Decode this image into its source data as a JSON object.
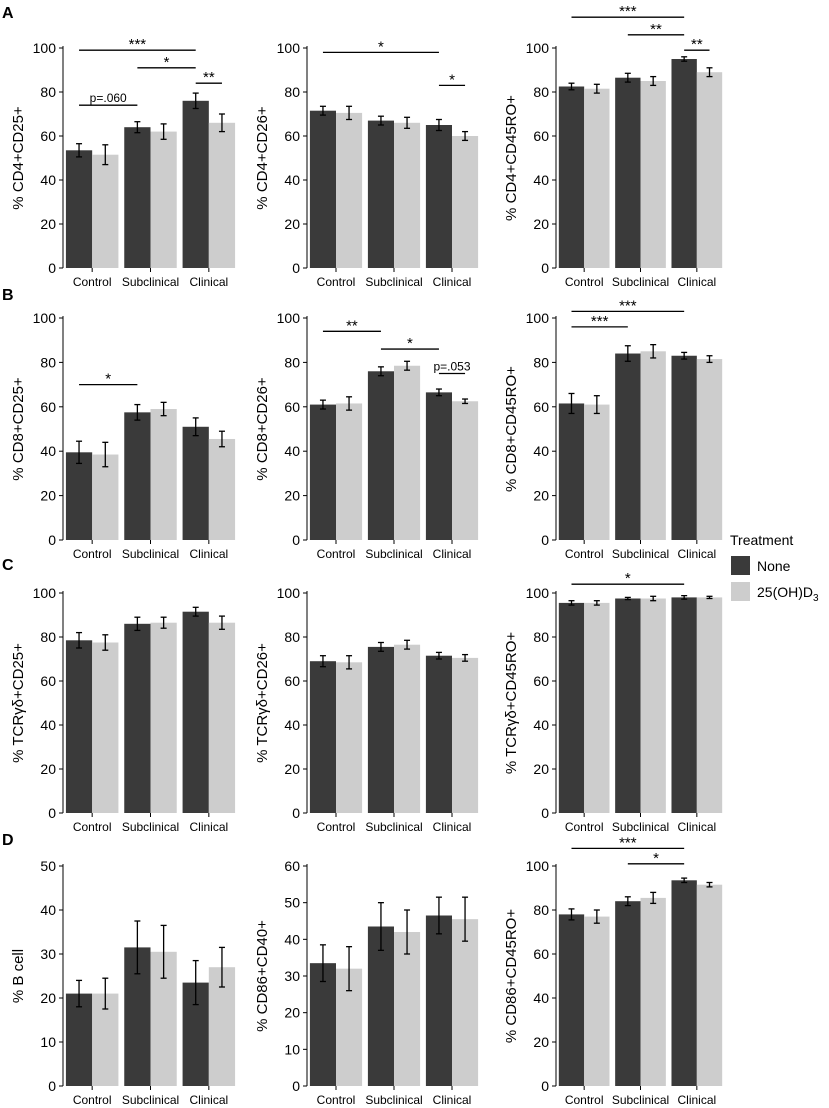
{
  "figure": {
    "row_labels": [
      "A",
      "B",
      "C",
      "D"
    ],
    "legend": {
      "title": "Treatment",
      "items": [
        {
          "label": "None",
          "color": "#3a3a3a"
        },
        {
          "label": "25(OH)D",
          "sub": "3",
          "color": "#cdcdcd"
        }
      ]
    },
    "colors": {
      "none": "#3a3a3a",
      "treated": "#cdcdcd"
    }
  },
  "chart_data": [
    {
      "type": "bar",
      "panel": "A1",
      "ylabel": "% CD4+CD25+",
      "categories": [
        "Control",
        "Subclinical",
        "Clinical"
      ],
      "ylim": [
        0,
        100
      ],
      "yticks": [
        0,
        20,
        40,
        60,
        80,
        100
      ],
      "series": [
        {
          "name": "None",
          "values": [
            53.5,
            64,
            76
          ],
          "errors": [
            3,
            2.5,
            3.5
          ]
        },
        {
          "name": "25(OH)D3",
          "values": [
            51.5,
            62,
            66
          ],
          "errors": [
            4.5,
            3.5,
            4
          ]
        }
      ],
      "annotations": [
        {
          "label": "p=.060",
          "from": [
            0,
            0
          ],
          "to": [
            1,
            0
          ],
          "y": 74
        },
        {
          "label": "***",
          "from": [
            0,
            0
          ],
          "to": [
            2,
            0
          ],
          "y": 99
        },
        {
          "label": "*",
          "from": [
            1,
            0
          ],
          "to": [
            2,
            0
          ],
          "y": 91
        },
        {
          "label": "**",
          "from": [
            2,
            0
          ],
          "to": [
            2,
            1
          ],
          "y": 84
        }
      ]
    },
    {
      "type": "bar",
      "panel": "A2",
      "ylabel": "% CD4+CD26+",
      "categories": [
        "Control",
        "Subclinical",
        "Clinical"
      ],
      "ylim": [
        0,
        100
      ],
      "yticks": [
        0,
        20,
        40,
        60,
        80,
        100
      ],
      "series": [
        {
          "name": "None",
          "values": [
            71.5,
            67,
            65
          ],
          "errors": [
            2,
            2,
            2.5
          ]
        },
        {
          "name": "25(OH)D3",
          "values": [
            70.5,
            66,
            60
          ],
          "errors": [
            3,
            2.5,
            2
          ]
        }
      ],
      "annotations": [
        {
          "label": "*",
          "from": [
            0,
            0
          ],
          "to": [
            2,
            0
          ],
          "y": 98
        },
        {
          "label": "*",
          "from": [
            2,
            0
          ],
          "to": [
            2,
            1
          ],
          "y": 83
        }
      ]
    },
    {
      "type": "bar",
      "panel": "A3",
      "ylabel": "% CD4+CD45RO+",
      "categories": [
        "Control",
        "Subclinical",
        "Clinical"
      ],
      "ylim": [
        0,
        100
      ],
      "yticks": [
        0,
        20,
        40,
        60,
        80,
        100
      ],
      "series": [
        {
          "name": "None",
          "values": [
            82.5,
            86.5,
            95
          ],
          "errors": [
            1.5,
            2,
            1
          ]
        },
        {
          "name": "25(OH)D3",
          "values": [
            81.5,
            85,
            89
          ],
          "errors": [
            2,
            2,
            2
          ]
        }
      ],
      "annotations": [
        {
          "label": "***",
          "from": [
            0,
            0
          ],
          "to": [
            2,
            0
          ],
          "y": 114
        },
        {
          "label": "**",
          "from": [
            1,
            0
          ],
          "to": [
            2,
            0
          ],
          "y": 106
        },
        {
          "label": "**",
          "from": [
            2,
            0
          ],
          "to": [
            2,
            1
          ],
          "y": 99
        }
      ]
    },
    {
      "type": "bar",
      "panel": "B1",
      "ylabel": "% CD8+CD25+",
      "categories": [
        "Control",
        "Subclinical",
        "Clinical"
      ],
      "ylim": [
        0,
        100
      ],
      "yticks": [
        0,
        20,
        40,
        60,
        80,
        100
      ],
      "series": [
        {
          "name": "None",
          "values": [
            39.5,
            57.5,
            51
          ],
          "errors": [
            5,
            3.5,
            4
          ]
        },
        {
          "name": "25(OH)D3",
          "values": [
            38.5,
            59,
            45.5
          ],
          "errors": [
            5.5,
            3,
            3.5
          ]
        }
      ],
      "annotations": [
        {
          "label": "*",
          "from": [
            0,
            0
          ],
          "to": [
            1,
            0
          ],
          "y": 70
        }
      ]
    },
    {
      "type": "bar",
      "panel": "B2",
      "ylabel": "% CD8+CD26+",
      "categories": [
        "Control",
        "Subclinical",
        "Clinical"
      ],
      "ylim": [
        0,
        100
      ],
      "yticks": [
        0,
        20,
        40,
        60,
        80,
        100
      ],
      "series": [
        {
          "name": "None",
          "values": [
            61,
            76,
            66.5
          ],
          "errors": [
            2,
            2,
            1.5
          ]
        },
        {
          "name": "25(OH)D3",
          "values": [
            61.5,
            78.5,
            62.5
          ],
          "errors": [
            3,
            2,
            1
          ]
        }
      ],
      "annotations": [
        {
          "label": "**",
          "from": [
            0,
            0
          ],
          "to": [
            1,
            0
          ],
          "y": 94
        },
        {
          "label": "*",
          "from": [
            1,
            0
          ],
          "to": [
            2,
            0
          ],
          "y": 86
        },
        {
          "label": "p=.053",
          "from": [
            2,
            0
          ],
          "to": [
            2,
            1
          ],
          "y": 75
        }
      ]
    },
    {
      "type": "bar",
      "panel": "B3",
      "ylabel": "% CD8+CD45RO+",
      "categories": [
        "Control",
        "Subclinical",
        "Clinical"
      ],
      "ylim": [
        0,
        100
      ],
      "yticks": [
        0,
        20,
        40,
        60,
        80,
        100
      ],
      "series": [
        {
          "name": "None",
          "values": [
            61.5,
            84,
            83
          ],
          "errors": [
            4.5,
            3.5,
            1.5
          ]
        },
        {
          "name": "25(OH)D3",
          "values": [
            61,
            85,
            81.5
          ],
          "errors": [
            4,
            3,
            1.5
          ]
        }
      ],
      "annotations": [
        {
          "label": "***",
          "from": [
            0,
            0
          ],
          "to": [
            2,
            0
          ],
          "y": 103
        },
        {
          "label": "***",
          "from": [
            0,
            0
          ],
          "to": [
            1,
            0
          ],
          "y": 96
        }
      ]
    },
    {
      "type": "bar",
      "panel": "C1",
      "ylabel": "% TCRγδ+CD25+",
      "categories": [
        "Control",
        "Subclinical",
        "Clinical"
      ],
      "ylim": [
        0,
        100
      ],
      "yticks": [
        0,
        20,
        40,
        60,
        80,
        100
      ],
      "series": [
        {
          "name": "None",
          "values": [
            78.5,
            86,
            91.5
          ],
          "errors": [
            3.5,
            3,
            2
          ]
        },
        {
          "name": "25(OH)D3",
          "values": [
            77.5,
            86.5,
            86.5
          ],
          "errors": [
            3.5,
            2.5,
            3
          ]
        }
      ],
      "annotations": []
    },
    {
      "type": "bar",
      "panel": "C2",
      "ylabel": "% TCRγδ+CD26+",
      "categories": [
        "Control",
        "Subclinical",
        "Clinical"
      ],
      "ylim": [
        0,
        100
      ],
      "yticks": [
        0,
        20,
        40,
        60,
        80,
        100
      ],
      "series": [
        {
          "name": "None",
          "values": [
            69,
            75.5,
            71.5
          ],
          "errors": [
            2.5,
            2,
            1.5
          ]
        },
        {
          "name": "25(OH)D3",
          "values": [
            68.5,
            76.5,
            70.5
          ],
          "errors": [
            3,
            2,
            1.5
          ]
        }
      ],
      "annotations": []
    },
    {
      "type": "bar",
      "panel": "C3",
      "ylabel": "% TCRγδ+CD45RO+",
      "categories": [
        "Control",
        "Subclinical",
        "Clinical"
      ],
      "ylim": [
        0,
        100
      ],
      "yticks": [
        0,
        20,
        40,
        60,
        80,
        100
      ],
      "series": [
        {
          "name": "None",
          "values": [
            95.5,
            97.5,
            98
          ],
          "errors": [
            1,
            0.5,
            0.8
          ]
        },
        {
          "name": "25(OH)D3",
          "values": [
            95.5,
            97.5,
            98
          ],
          "errors": [
            1,
            1,
            0.5
          ]
        }
      ],
      "annotations": [
        {
          "label": "*",
          "from": [
            0,
            0
          ],
          "to": [
            2,
            0
          ],
          "y": 104
        }
      ]
    },
    {
      "type": "bar",
      "panel": "D1",
      "ylabel": "% B cell",
      "categories": [
        "Control",
        "Subclinical",
        "Clinical"
      ],
      "ylim": [
        0,
        50
      ],
      "yticks": [
        0,
        10,
        20,
        30,
        40,
        50
      ],
      "series": [
        {
          "name": "None",
          "values": [
            21,
            31.5,
            23.5
          ],
          "errors": [
            3,
            6,
            5
          ]
        },
        {
          "name": "25(OH)D3",
          "values": [
            21,
            30.5,
            27
          ],
          "errors": [
            3.5,
            6,
            4.5
          ]
        }
      ],
      "annotations": []
    },
    {
      "type": "bar",
      "panel": "D2",
      "ylabel": "% CD86+CD40+",
      "categories": [
        "Control",
        "Subclinical",
        "Clinical"
      ],
      "ylim": [
        0,
        60
      ],
      "yticks": [
        0,
        10,
        20,
        30,
        40,
        50,
        60
      ],
      "series": [
        {
          "name": "None",
          "values": [
            33.5,
            43.5,
            46.5
          ],
          "errors": [
            5,
            6.5,
            5
          ]
        },
        {
          "name": "25(OH)D3",
          "values": [
            32,
            42,
            45.5
          ],
          "errors": [
            6,
            6,
            6
          ]
        }
      ],
      "annotations": []
    },
    {
      "type": "bar",
      "panel": "D3",
      "ylabel": "% CD86+CD45RO+",
      "categories": [
        "Control",
        "Subclinical",
        "Clinical"
      ],
      "ylim": [
        0,
        100
      ],
      "yticks": [
        0,
        20,
        40,
        60,
        80,
        100
      ],
      "series": [
        {
          "name": "None",
          "values": [
            78,
            84,
            93.5
          ],
          "errors": [
            2.5,
            2,
            1
          ]
        },
        {
          "name": "25(OH)D3",
          "values": [
            77,
            85.5,
            91.5
          ],
          "errors": [
            3,
            2.5,
            1
          ]
        }
      ],
      "annotations": [
        {
          "label": "***",
          "from": [
            0,
            0
          ],
          "to": [
            2,
            0
          ],
          "y": 108
        },
        {
          "label": "*",
          "from": [
            1,
            0
          ],
          "to": [
            2,
            0
          ],
          "y": 101
        }
      ]
    }
  ]
}
